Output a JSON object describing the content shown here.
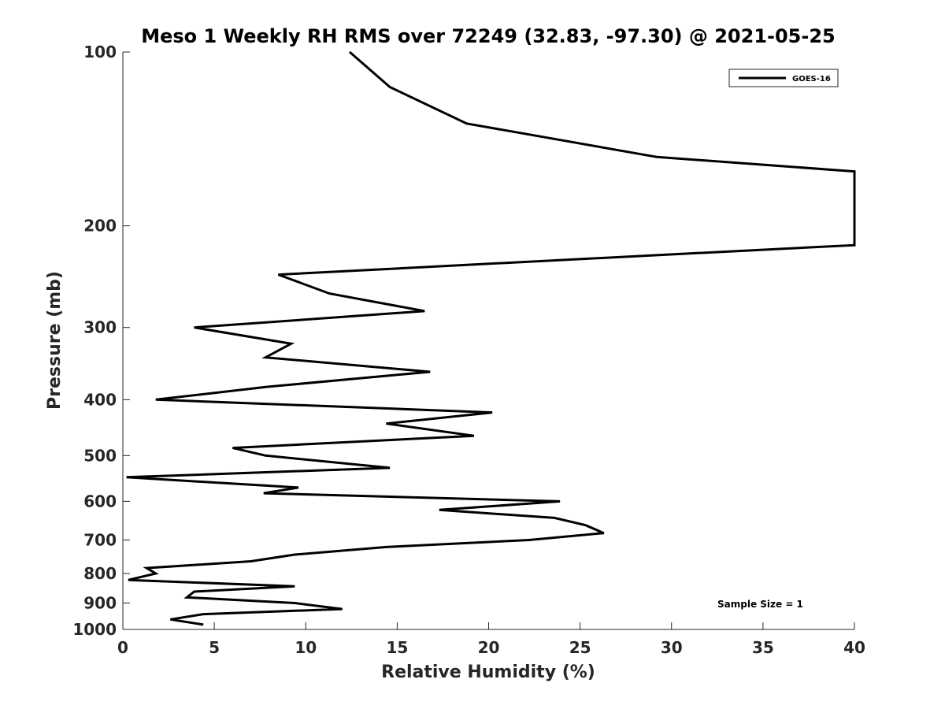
{
  "chart_data": {
    "type": "line",
    "title": "Meso 1 Weekly RH RMS over 72249 (32.83, -97.30) @ 2021-05-25",
    "xlabel": "Relative Humidity (%)",
    "ylabel": "Pressure (mb)",
    "xlim": [
      0,
      40
    ],
    "ylim": [
      100,
      1000
    ],
    "y_scale": "log",
    "y_direction": "reversed",
    "x_ticks": [
      "0",
      "5",
      "10",
      "15",
      "20",
      "25",
      "30",
      "35",
      "40"
    ],
    "y_ticks": [
      "100",
      "200",
      "300",
      "400",
      "500",
      "600",
      "700",
      "800",
      "900",
      "1000"
    ],
    "grid": false,
    "legend_position": "top-right",
    "annotation": "Sample Size = 1",
    "line_color": "#000000",
    "series": [
      {
        "name": "GOES-16",
        "x": [
          12.4,
          14.6,
          18.8,
          29.2,
          40.0,
          40.0,
          29.0,
          8.5,
          11.3,
          16.5,
          3.9,
          9.2,
          7.8,
          16.8,
          7.9,
          1.8,
          20.2,
          14.4,
          19.2,
          6.0,
          7.8,
          14.6,
          0.2,
          9.6,
          7.7,
          23.9,
          17.3,
          23.6,
          25.3,
          26.3,
          22.2,
          14.4,
          9.4,
          7.0,
          1.3,
          1.8,
          0.3,
          9.4,
          3.9,
          3.5,
          9.4,
          12.0,
          4.4,
          2.6,
          4.4
        ],
        "y": [
          100,
          115,
          133,
          152,
          161,
          216,
          225,
          243,
          262,
          281,
          300,
          320,
          338,
          358,
          380,
          400,
          421,
          440,
          462,
          485,
          500,
          525,
          545,
          568,
          581,
          600,
          621,
          641,
          660,
          681,
          700,
          720,
          742,
          762,
          783,
          800,
          821,
          842,
          860,
          880,
          900,
          922,
          941,
          961,
          981
        ]
      }
    ]
  }
}
